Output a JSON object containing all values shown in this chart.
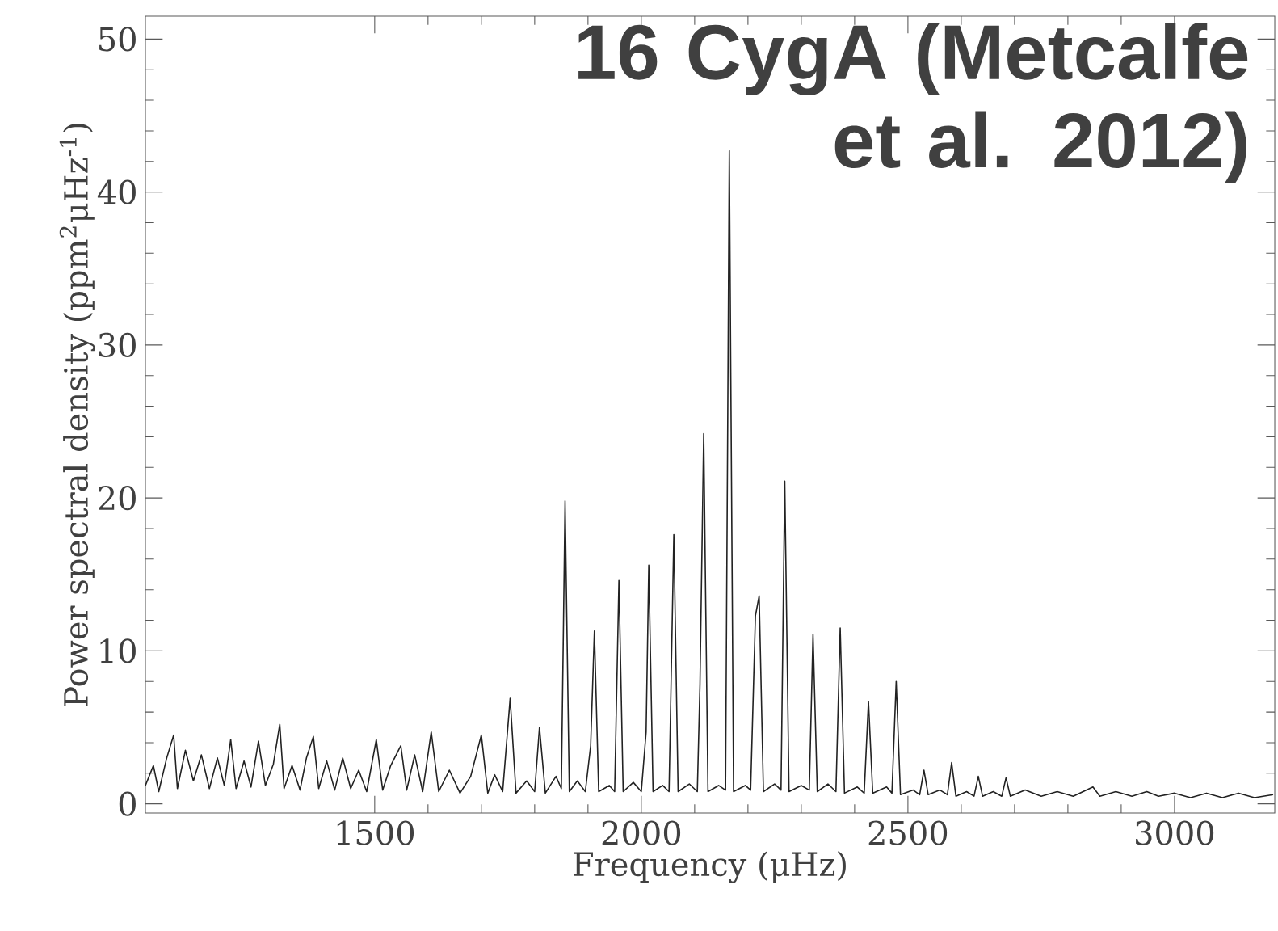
{
  "chart_data": {
    "type": "line",
    "title": "16 CygA  (Metcalfe et al. 2012)",
    "xlabel": "Frequency (μHz)",
    "ylabel": "Power spectral density (ppm$^{2}$μHz$^{-1}$)",
    "x": [
      1070,
      1085,
      1095,
      1110,
      1123,
      1130,
      1145,
      1160,
      1175,
      1190,
      1205,
      1218,
      1230,
      1240,
      1255,
      1268,
      1282,
      1295,
      1310,
      1322,
      1330,
      1345,
      1360,
      1372,
      1385,
      1395,
      1410,
      1425,
      1440,
      1455,
      1470,
      1485,
      1503,
      1515,
      1530,
      1549,
      1560,
      1575,
      1590,
      1606,
      1620,
      1640,
      1660,
      1680,
      1700,
      1712,
      1725,
      1740,
      1754,
      1765,
      1785,
      1800,
      1809,
      1820,
      1840,
      1850,
      1857,
      1865,
      1880,
      1895,
      1905,
      1912,
      1920,
      1940,
      1950,
      1958,
      1966,
      1985,
      2000,
      2009,
      2014,
      2022,
      2040,
      2052,
      2061,
      2069,
      2090,
      2105,
      2110,
      2117,
      2125,
      2145,
      2158,
      2165,
      2173,
      2195,
      2205,
      2214,
      2221,
      2229,
      2250,
      2262,
      2269,
      2277,
      2300,
      2315,
      2322,
      2330,
      2350,
      2365,
      2373,
      2381,
      2405,
      2418,
      2426,
      2434,
      2460,
      2470,
      2478,
      2486,
      2510,
      2522,
      2530,
      2538,
      2560,
      2574,
      2582,
      2590,
      2610,
      2624,
      2632,
      2640,
      2660,
      2676,
      2684,
      2692,
      2720,
      2750,
      2780,
      2810,
      2847,
      2860,
      2890,
      2920,
      2948,
      2970,
      3000,
      3030,
      3060,
      3090,
      3120,
      3150,
      3185
    ],
    "series": [
      {
        "color": "#222222",
        "values": [
          1.2,
          2.5,
          0.8,
          3.0,
          4.5,
          1.0,
          3.5,
          1.5,
          3.2,
          1.0,
          3.0,
          1.2,
          4.2,
          1.0,
          2.8,
          1.1,
          4.1,
          1.2,
          2.6,
          5.2,
          1.0,
          2.5,
          0.9,
          3.0,
          4.4,
          1.0,
          2.8,
          0.9,
          3.0,
          1.0,
          2.2,
          0.8,
          4.2,
          0.9,
          2.5,
          3.8,
          0.9,
          3.2,
          0.8,
          4.7,
          0.8,
          2.2,
          0.7,
          1.8,
          4.5,
          0.7,
          1.9,
          0.8,
          6.9,
          0.7,
          1.5,
          0.8,
          5.0,
          0.7,
          1.8,
          1.0,
          19.8,
          0.8,
          1.5,
          0.8,
          3.8,
          11.3,
          0.8,
          1.2,
          0.8,
          14.6,
          0.8,
          1.4,
          0.8,
          4.7,
          15.6,
          0.8,
          1.2,
          0.8,
          17.6,
          0.8,
          1.3,
          0.8,
          7.8,
          24.2,
          0.8,
          1.2,
          0.9,
          42.7,
          0.8,
          1.2,
          0.9,
          12.3,
          13.6,
          0.8,
          1.3,
          0.9,
          21.1,
          0.8,
          1.2,
          0.9,
          11.1,
          0.8,
          1.3,
          0.8,
          11.5,
          0.7,
          1.1,
          0.7,
          6.7,
          0.7,
          1.1,
          0.7,
          8.0,
          0.6,
          0.9,
          0.6,
          2.2,
          0.6,
          0.9,
          0.6,
          2.7,
          0.5,
          0.8,
          0.5,
          1.8,
          0.5,
          0.8,
          0.5,
          1.7,
          0.5,
          0.9,
          0.5,
          0.8,
          0.5,
          1.1,
          0.5,
          0.8,
          0.5,
          0.8,
          0.5,
          0.7,
          0.4,
          0.7,
          0.4,
          0.7,
          0.4,
          0.6
        ]
      }
    ],
    "xlim": [
      1070,
      3188
    ],
    "ylim": [
      -0.6,
      51.5
    ],
    "xticks": [
      1500,
      2000,
      2500,
      3000
    ],
    "yticks": [
      0,
      10,
      20,
      30,
      40,
      50
    ]
  }
}
